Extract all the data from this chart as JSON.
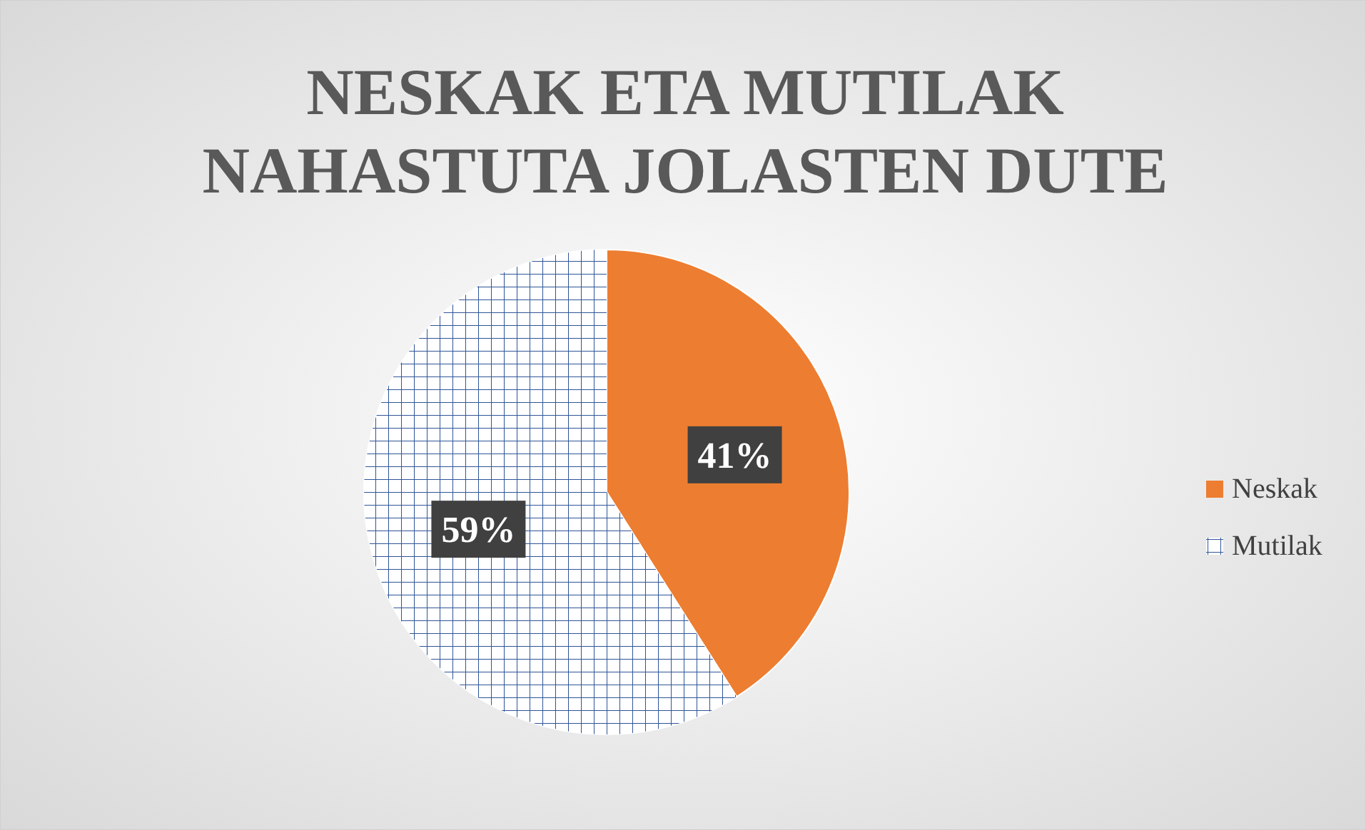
{
  "chart_data": {
    "type": "pie",
    "title": "NESKAK ETA MUTILAK NAHASTUTA JOLASTEN DUTE",
    "categories": [
      "Neskak",
      "Mutilak"
    ],
    "values": [
      41,
      59
    ],
    "value_labels": [
      "41%",
      "59%"
    ],
    "colors": [
      "#ed7d31",
      "#ffffff"
    ],
    "legend": "right"
  }
}
